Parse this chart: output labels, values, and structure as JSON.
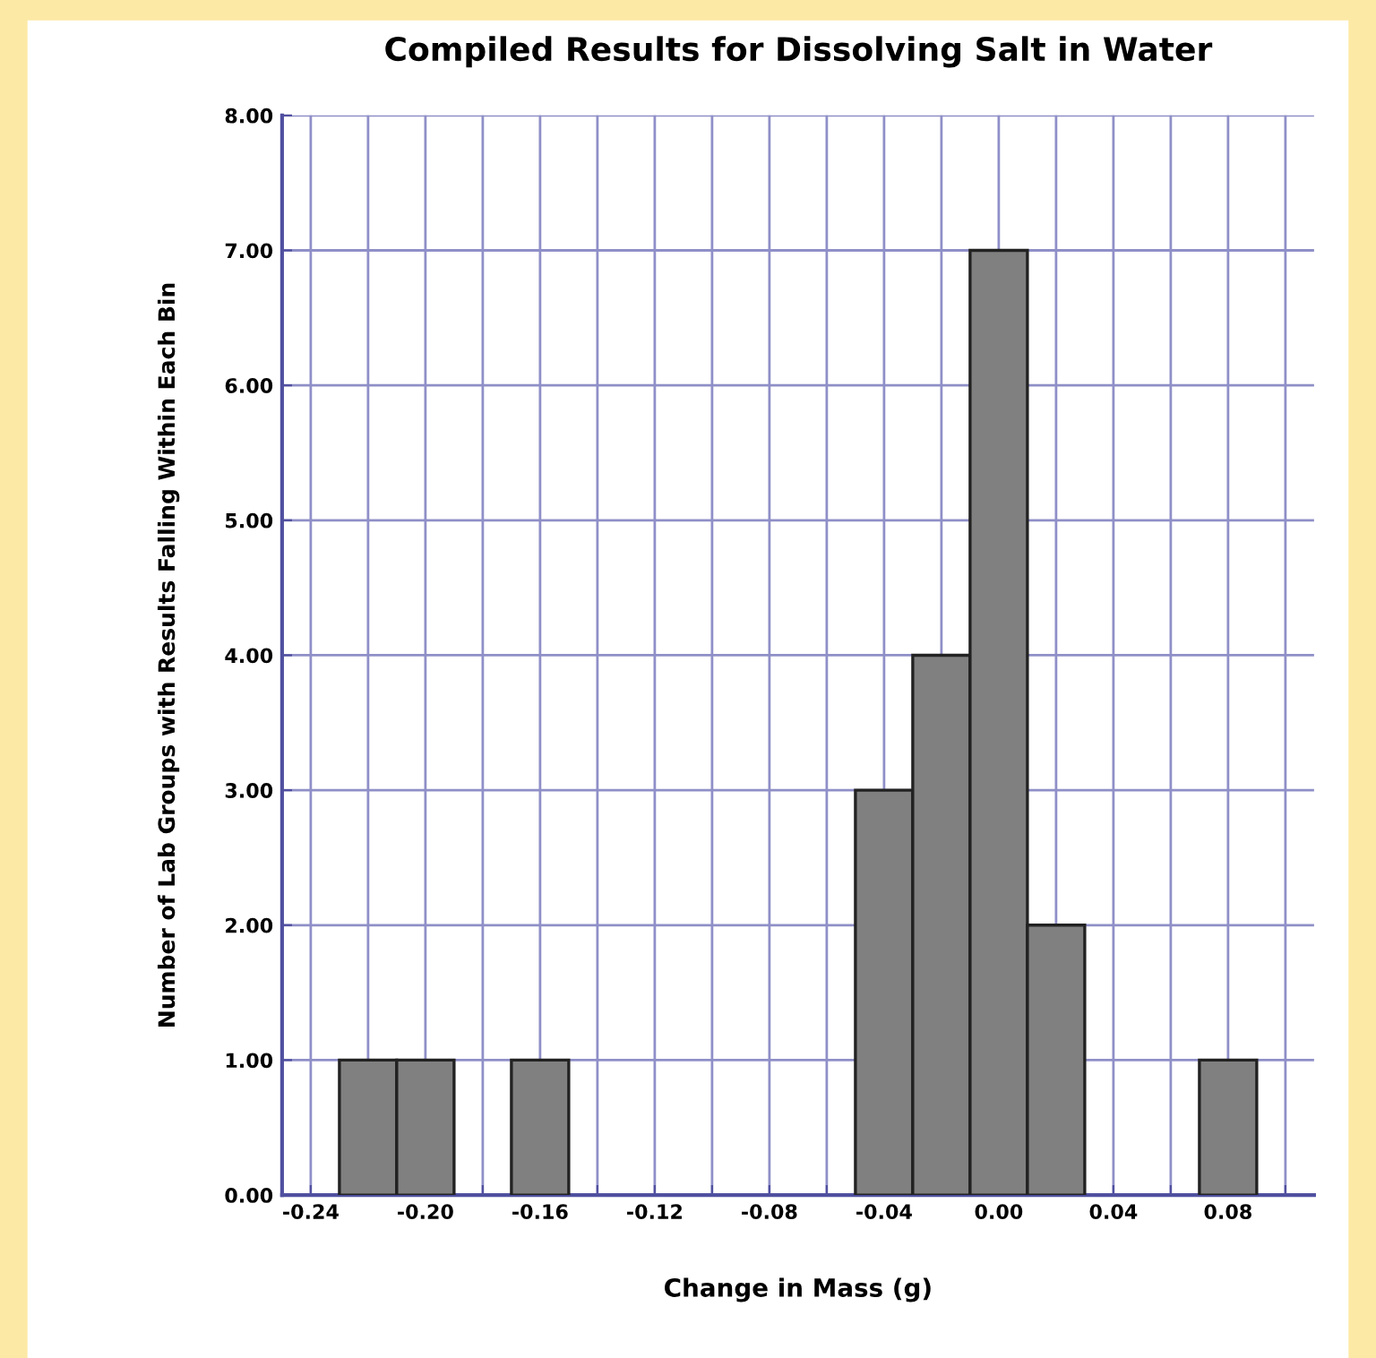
{
  "chart_data": {
    "type": "histogram",
    "title": "Compiled Results for Dissolving Salt in Water",
    "xlabel": "Change in Mass (g)",
    "ylabel": "Number of Lab Groups with Results Falling Within Each Bin",
    "bins": [
      -0.23,
      -0.21,
      -0.19,
      -0.17,
      -0.15,
      -0.13,
      -0.11,
      -0.09,
      -0.07,
      -0.05,
      -0.03,
      -0.01,
      0.01,
      0.03,
      0.05,
      0.07,
      0.09
    ],
    "values": [
      1,
      1,
      0,
      1,
      0,
      0,
      0,
      0,
      0,
      3,
      4,
      7,
      2,
      0,
      0,
      1
    ],
    "color": "#808080",
    "xlim": [
      -0.25,
      0.11
    ],
    "xticks": [
      {
        "value": -0.24,
        "label": "-0.24"
      },
      {
        "value": -0.22,
        "label": null
      },
      {
        "value": -0.2,
        "label": "-0.20"
      },
      {
        "value": -0.18,
        "label": null
      },
      {
        "value": -0.16,
        "label": "-0.16"
      },
      {
        "value": -0.14,
        "label": null
      },
      {
        "value": -0.12,
        "label": "-0.12"
      },
      {
        "value": -0.1,
        "label": null
      },
      {
        "value": -0.08,
        "label": "-0.08"
      },
      {
        "value": -0.06,
        "label": null
      },
      {
        "value": -0.04,
        "label": "-0.04"
      },
      {
        "value": -0.02,
        "label": null
      },
      {
        "value": 0.0,
        "label": "0.00"
      },
      {
        "value": 0.02,
        "label": null
      },
      {
        "value": 0.04,
        "label": "0.04"
      },
      {
        "value": 0.06,
        "label": null
      },
      {
        "value": 0.08,
        "label": "0.08"
      },
      {
        "value": 0.1,
        "label": null
      }
    ],
    "ylim": [
      0,
      8
    ],
    "yticks": [
      {
        "value": 0,
        "label": "0.00"
      },
      {
        "value": 1,
        "label": "1.00"
      },
      {
        "value": 2,
        "label": "2.00"
      },
      {
        "value": 3,
        "label": "3.00"
      },
      {
        "value": 4,
        "label": "4.00"
      },
      {
        "value": 5,
        "label": "5.00"
      },
      {
        "value": 6,
        "label": "6.00"
      },
      {
        "value": 7,
        "label": "7.00"
      },
      {
        "value": 8,
        "label": "8.00"
      }
    ],
    "grid": true
  }
}
